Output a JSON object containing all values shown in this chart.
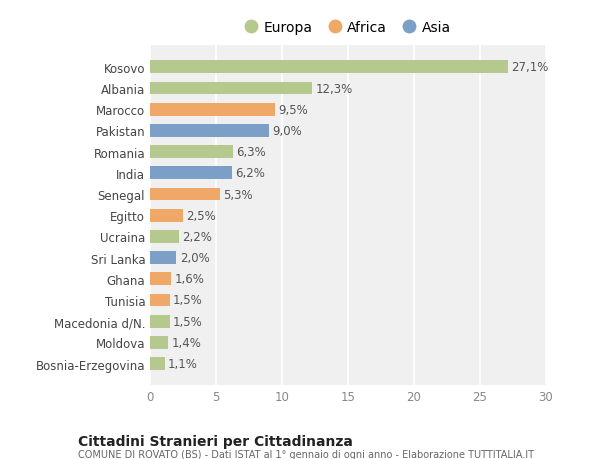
{
  "categories": [
    "Bosnia-Erzegovina",
    "Moldova",
    "Macedonia d/N.",
    "Tunisia",
    "Ghana",
    "Sri Lanka",
    "Ucraina",
    "Egitto",
    "Senegal",
    "India",
    "Romania",
    "Pakistan",
    "Marocco",
    "Albania",
    "Kosovo"
  ],
  "values": [
    1.1,
    1.4,
    1.5,
    1.5,
    1.6,
    2.0,
    2.2,
    2.5,
    5.3,
    6.2,
    6.3,
    9.0,
    9.5,
    12.3,
    27.1
  ],
  "labels": [
    "1,1%",
    "1,4%",
    "1,5%",
    "1,5%",
    "1,6%",
    "2,0%",
    "2,2%",
    "2,5%",
    "5,3%",
    "6,2%",
    "6,3%",
    "9,0%",
    "9,5%",
    "12,3%",
    "27,1%"
  ],
  "continents": [
    "Europa",
    "Europa",
    "Europa",
    "Africa",
    "Africa",
    "Asia",
    "Europa",
    "Africa",
    "Africa",
    "Asia",
    "Europa",
    "Asia",
    "Africa",
    "Europa",
    "Europa"
  ],
  "colors": {
    "Europa": "#b5c98e",
    "Africa": "#f0a868",
    "Asia": "#7b9fc7"
  },
  "xlim": [
    0,
    30
  ],
  "xticks": [
    0,
    5,
    10,
    15,
    20,
    25,
    30
  ],
  "background_color": "#ffffff",
  "plot_bg_color": "#f0f0f0",
  "title": "Cittadini Stranieri per Cittadinanza",
  "subtitle": "COMUNE DI ROVATO (BS) - Dati ISTAT al 1° gennaio di ogni anno - Elaborazione TUTTITALIA.IT",
  "grid_color": "#ffffff",
  "bar_height": 0.6,
  "label_fontsize": 8.5,
  "tick_fontsize": 8.5,
  "legend_fontsize": 10
}
